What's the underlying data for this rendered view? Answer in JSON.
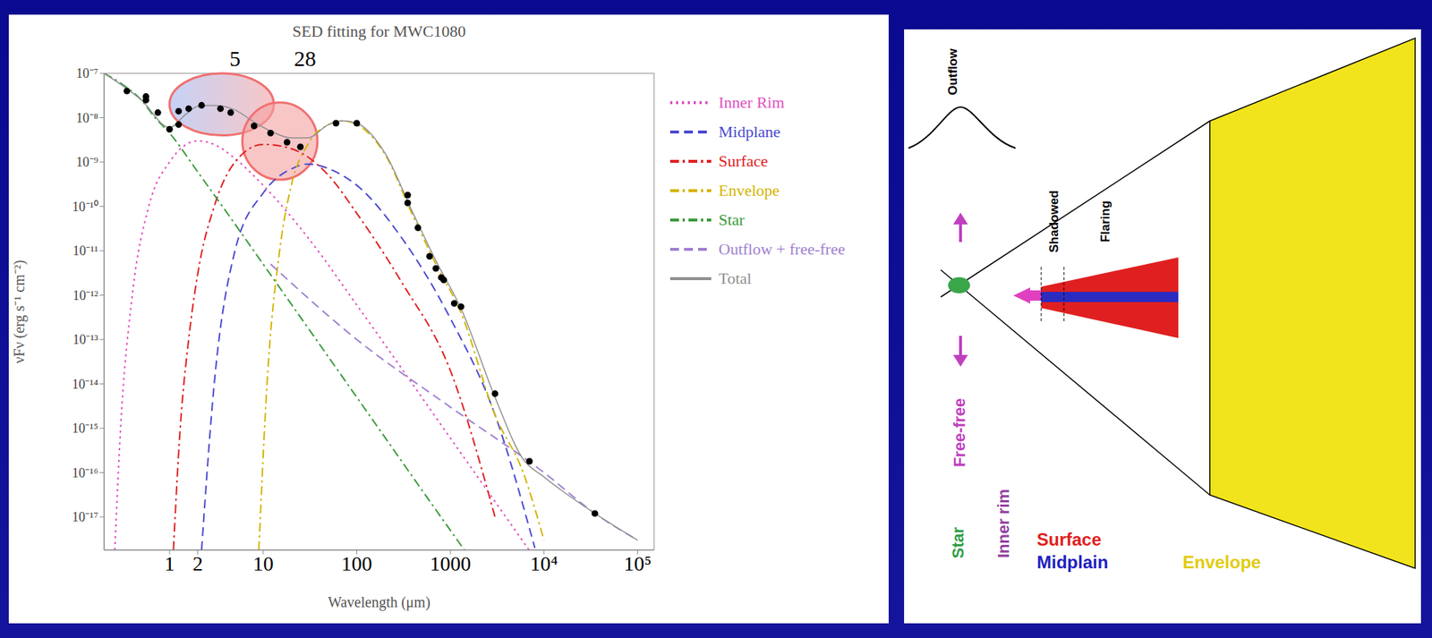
{
  "chart_data": {
    "type": "line",
    "title": "SED fitting for MWC1080",
    "x_label": "Wavelength (μm)",
    "y_label": "νFν (erg s⁻¹ cm⁻²)",
    "log": true,
    "grid": false,
    "legend": "right",
    "xlim": [
      0.2,
      150000
    ],
    "ylim": [
      1.8e-18,
      1e-07
    ],
    "xticks": [
      1,
      2,
      10,
      100,
      1000,
      {
        "value": 10000,
        "label": "10⁴"
      },
      {
        "value": 100000,
        "label": "10⁵"
      }
    ],
    "yticks": [
      {
        "value": 1e-07,
        "label": "10⁻⁷"
      },
      {
        "value": 1e-08,
        "label": "10⁻⁸"
      },
      {
        "value": 1e-09,
        "label": "10⁻⁹"
      },
      {
        "value": 1e-10,
        "label": "10⁻¹⁰"
      },
      {
        "value": 1e-11,
        "label": "10⁻¹¹"
      },
      {
        "value": 1e-12,
        "label": "10⁻¹²"
      },
      {
        "value": 1e-13,
        "label": "10⁻¹³"
      },
      {
        "value": 1e-14,
        "label": "10⁻¹⁴"
      },
      {
        "value": 1e-15,
        "label": "10⁻¹⁵"
      },
      {
        "value": 1e-16,
        "label": "10⁻¹⁶"
      },
      {
        "value": 1e-17,
        "label": "10⁻¹⁷"
      }
    ],
    "annotations": [
      {
        "text": "5",
        "x": 5
      },
      {
        "text": "28",
        "x": 28
      }
    ],
    "highlights": [
      {
        "x": [
          1,
          13
        ],
        "y": [
          4e-09,
          1e-07
        ]
      },
      {
        "x": [
          6,
          38
        ],
        "y": [
          4e-10,
          2.2e-08
        ]
      }
    ],
    "series": [
      {
        "name": "Inner Rim",
        "color": "#e050c0",
        "line_style": "dotted",
        "x": [
          0.26,
          0.3,
          0.4,
          0.6,
          1,
          2,
          3,
          5,
          10,
          30,
          100,
          1000,
          10000
        ],
        "values": [
          1.8e-18,
          1e-15,
          1e-12,
          1e-10,
          1e-09,
          3e-09,
          2.5e-09,
          1.2e-09,
          3e-10,
          2e-11,
          6e-13,
          6e-16,
          6e-19
        ]
      },
      {
        "name": "Midplane",
        "color": "#4a4ad0",
        "line_style": "dashed",
        "x": [
          2.2,
          3,
          5,
          10,
          20,
          30,
          60,
          100,
          300,
          1000,
          3000,
          8000
        ],
        "values": [
          1.8e-18,
          1e-14,
          1e-11,
          2e-10,
          7e-10,
          9e-10,
          6e-10,
          3e-10,
          2e-11,
          3e-13,
          2e-15,
          2e-18
        ]
      },
      {
        "name": "Surface",
        "color": "#e02020",
        "line_style": "dash-dot",
        "x": [
          1.1,
          1.3,
          1.6,
          2,
          3,
          5,
          10,
          20,
          50,
          100,
          300,
          1000,
          3000
        ],
        "values": [
          1.8e-18,
          1e-15,
          1e-13,
          3e-12,
          1e-10,
          1e-09,
          2.5e-09,
          2e-09,
          5e-10,
          7e-11,
          2e-12,
          2e-14,
          1e-17
        ]
      },
      {
        "name": "Envelope",
        "color": "#d4b400",
        "line_style": "dash-dot",
        "x": [
          9,
          11,
          15,
          20,
          30,
          50,
          70,
          100,
          200,
          400,
          700,
          1300,
          3000,
          6000,
          10000
        ],
        "values": [
          1.8e-18,
          1e-14,
          1e-11,
          3e-10,
          2.5e-09,
          7e-09,
          8.5e-09,
          7e-09,
          1.5e-09,
          6e-11,
          5e-12,
          4e-13,
          2e-15,
          1e-16,
          3e-18
        ]
      },
      {
        "name": "Star",
        "color": "#3a9a3a",
        "line_style": "dash-dot",
        "x": [
          0.2,
          0.3,
          0.5,
          0.7,
          1,
          2,
          5,
          10,
          100,
          1000,
          1500
        ],
        "values": [
          1e-07,
          6e-08,
          2.5e-08,
          1e-08,
          4.5e-09,
          6e-10,
          4e-11,
          5e-12,
          5e-15,
          5e-18,
          1.5e-18
        ]
      },
      {
        "name": "Outflow + free-free",
        "color": "#a080d0",
        "line_style": "dashed",
        "x": [
          12,
          100,
          1000,
          10000,
          35000,
          100000
        ],
        "values": [
          5e-12,
          1e-13,
          3e-15,
          1e-16,
          1.2e-17,
          3e-18
        ]
      },
      {
        "name": "Total",
        "color": "#909090",
        "line_style": "solid",
        "x": [
          0.2,
          0.5,
          1,
          1.5,
          2,
          3,
          5,
          8,
          12,
          20,
          30,
          50,
          70,
          100,
          200,
          400,
          700,
          1300,
          3000,
          6000,
          10000,
          35000,
          100000
        ],
        "values": [
          1e-07,
          2.5e-08,
          6e-09,
          1.2e-08,
          1.8e-08,
          1.9e-08,
          1.5e-08,
          8e-09,
          5e-09,
          3.5e-09,
          3.5e-09,
          7e-09,
          8.5e-09,
          7.5e-09,
          1.6e-09,
          7e-11,
          6e-12,
          5e-13,
          5e-15,
          2e-16,
          8e-17,
          1.2e-17,
          3e-18
        ]
      }
    ],
    "points": {
      "color": "#000000",
      "marker": "circle",
      "x": [
        0.35,
        0.56,
        0.56,
        0.75,
        1,
        1.25,
        1.25,
        1.6,
        2.2,
        3.5,
        4.5,
        8,
        12,
        18,
        25,
        60,
        100,
        350,
        350,
        450,
        600,
        700,
        800,
        850,
        1100,
        1300,
        3000,
        7000,
        35000
      ],
      "values": [
        4e-08,
        3e-08,
        2.5e-08,
        1.3e-08,
        5.5e-09,
        1.4e-08,
        7e-09,
        1.6e-08,
        1.9e-08,
        1.6e-08,
        1.3e-08,
        6.5e-09,
        4.5e-09,
        2.8e-09,
        2.2e-09,
        7.5e-09,
        7.5e-09,
        1.8e-10,
        1.2e-10,
        3.3e-11,
        7.5e-12,
        4e-12,
        2.5e-12,
        2.2e-12,
        6.5e-13,
        5.5e-13,
        6e-15,
        1.8e-16,
        1.2e-17
      ]
    }
  },
  "diagram": {
    "outflow": "Outflow",
    "shadowed": "Shadowed",
    "flaring": "Flaring",
    "free_free": "Free-free",
    "star": "Star",
    "inner_rim": "Inner rim",
    "surface": "Surface",
    "midplane": "Midplain",
    "envelope": "Envelope"
  }
}
